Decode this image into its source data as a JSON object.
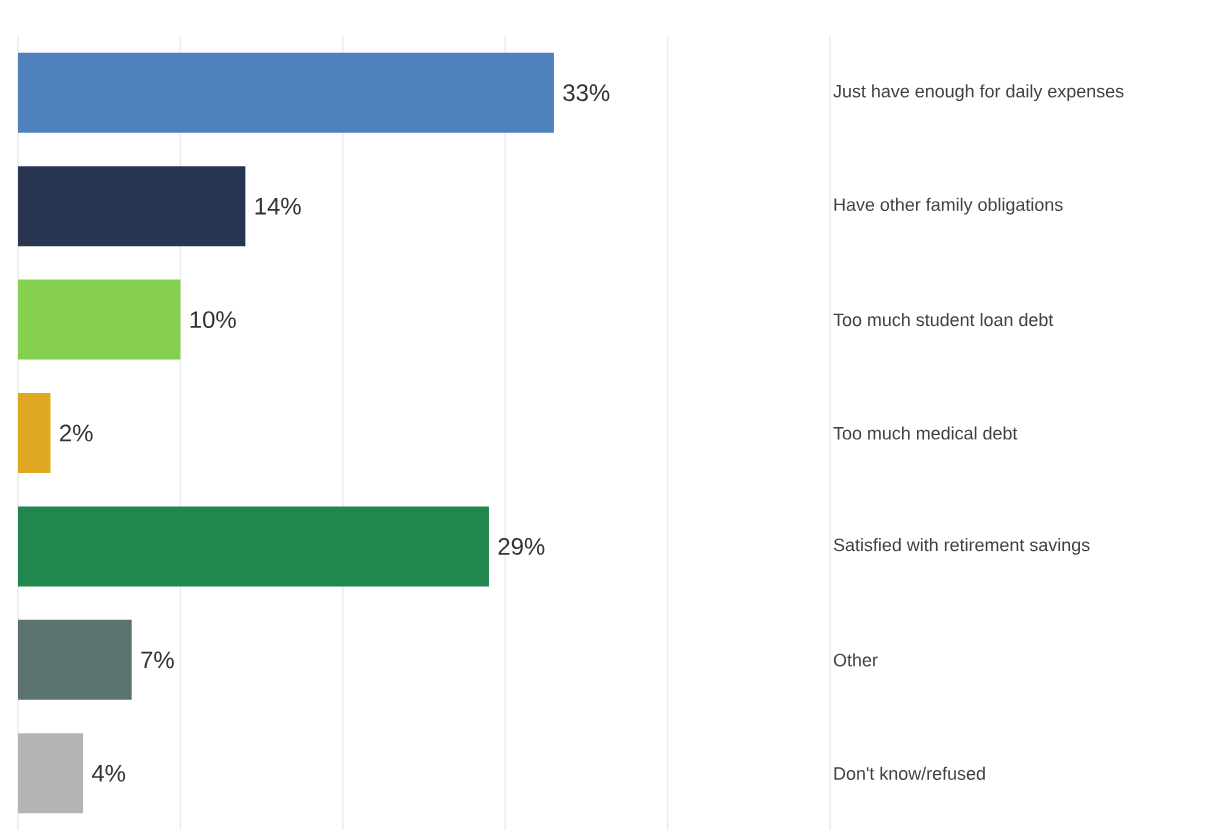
{
  "chart_data": {
    "type": "bar",
    "orientation": "horizontal",
    "categories": [
      "Just have enough for daily expenses",
      "Have other family obligations",
      "Too much student loan debt",
      "Too much medical debt",
      "Satisfied with retirement savings",
      "Other",
      "Don't know/refused"
    ],
    "values": [
      33,
      14,
      10,
      2,
      29,
      7,
      4
    ],
    "value_labels": [
      "33%",
      "14%",
      "10%",
      "2%",
      "29%",
      "7%",
      "4%"
    ],
    "colors": [
      "#4f81bd",
      "#283550",
      "#86d050",
      "#e0a820",
      "#20874e",
      "#5a7370",
      "#b4b4b4"
    ],
    "xlim": [
      0,
      50
    ],
    "xticks": [
      {
        "value": 0,
        "label": null
      },
      {
        "value": 10,
        "label": null
      },
      {
        "value": 20,
        "label": null
      },
      {
        "value": 30,
        "label": null
      },
      {
        "value": 40,
        "label": null
      },
      {
        "value": 50,
        "label": null
      }
    ],
    "grid": "x",
    "tick_labels": "y"
  }
}
